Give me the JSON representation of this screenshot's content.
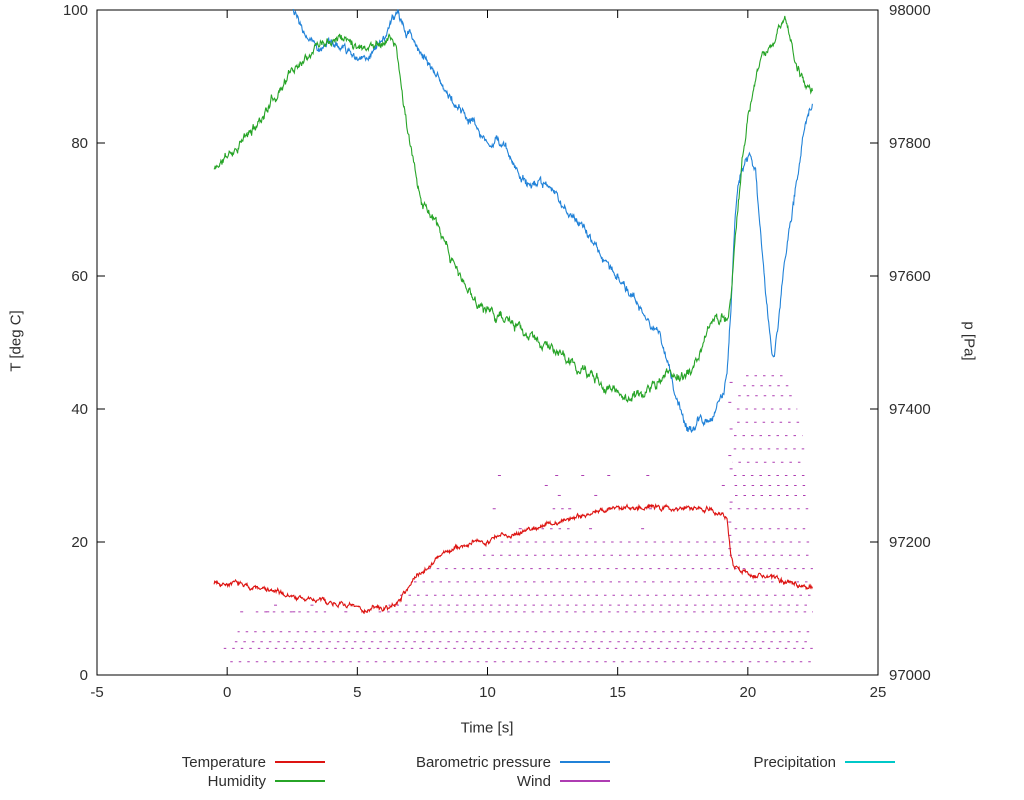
{
  "chart_data": {
    "type": "line",
    "title": "",
    "xlabel": "Time [s]",
    "ylabel_left": "T [deg C]",
    "ylabel_right": "p [Pa]",
    "xlim": [
      -5,
      25
    ],
    "ylim_left": [
      0,
      100
    ],
    "ylim_right": [
      97000,
      98000
    ],
    "x_ticks": [
      -5,
      0,
      5,
      10,
      15,
      20,
      25
    ],
    "y_left_ticks": [
      0,
      20,
      40,
      60,
      80,
      100
    ],
    "y_right_ticks": [
      97000,
      97200,
      97400,
      97600,
      97800,
      98000
    ],
    "grid": false,
    "legend_position": "bottom",
    "legend": [
      {
        "label": "Temperature",
        "color": "#dd1412"
      },
      {
        "label": "Humidity",
        "color": "#27a427"
      },
      {
        "label": "Barometric pressure",
        "color": "#2182d8"
      },
      {
        "label": "Wind",
        "color": "#ae3cb2"
      },
      {
        "label": "Precipitation",
        "color": "#00c8c8"
      }
    ],
    "series": [
      {
        "name": "Temperature",
        "axis": "left",
        "color": "#dd1412",
        "noise": 0.55,
        "seed": 7,
        "points": [
          [
            -0.5,
            14
          ],
          [
            0,
            13.8
          ],
          [
            0.5,
            13.6
          ],
          [
            1,
            13.2
          ],
          [
            1.5,
            12.8
          ],
          [
            2,
            12.3
          ],
          [
            2.5,
            11.8
          ],
          [
            3,
            11.4
          ],
          [
            3.5,
            11.2
          ],
          [
            4,
            11.0
          ],
          [
            4.5,
            10.6
          ],
          [
            5,
            10.0
          ],
          [
            5.3,
            9.8
          ],
          [
            5.6,
            10.1
          ],
          [
            6,
            10.0
          ],
          [
            6.4,
            10.3
          ],
          [
            6.6,
            11.2
          ],
          [
            7,
            13.5
          ],
          [
            7.3,
            15.0
          ],
          [
            7.6,
            16.0
          ],
          [
            8,
            17.3
          ],
          [
            8.5,
            18.6
          ],
          [
            9,
            19.3
          ],
          [
            9.5,
            19.8
          ],
          [
            10,
            20.3
          ],
          [
            10.5,
            20.8
          ],
          [
            11,
            21.3
          ],
          [
            11.5,
            21.8
          ],
          [
            12,
            22.3
          ],
          [
            12.5,
            22.8
          ],
          [
            13,
            23.3
          ],
          [
            13.5,
            24.0
          ],
          [
            14,
            24.4
          ],
          [
            14.5,
            24.8
          ],
          [
            15,
            25.0
          ],
          [
            15.5,
            25.3
          ],
          [
            16,
            25.4
          ],
          [
            16.5,
            25.2
          ],
          [
            17,
            25.0
          ],
          [
            17.5,
            25.2
          ],
          [
            18,
            25.4
          ],
          [
            18.5,
            25.0
          ],
          [
            19,
            24.2
          ],
          [
            19.2,
            23.5
          ],
          [
            19.35,
            18.0
          ],
          [
            19.5,
            16.0
          ],
          [
            19.8,
            15.5
          ],
          [
            20,
            15.3
          ],
          [
            20.5,
            15.0
          ],
          [
            21,
            14.5
          ],
          [
            21.5,
            14.0
          ],
          [
            22,
            13.6
          ],
          [
            22.5,
            13.2
          ]
        ]
      },
      {
        "name": "Humidity",
        "axis": "left",
        "color": "#27a427",
        "noise": 1.0,
        "seed": 11,
        "points": [
          [
            -0.5,
            76
          ],
          [
            0,
            78
          ],
          [
            0.5,
            80
          ],
          [
            1,
            82
          ],
          [
            1.5,
            85
          ],
          [
            2,
            88
          ],
          [
            2.5,
            91
          ],
          [
            3,
            93
          ],
          [
            3.3,
            94.5
          ],
          [
            3.6,
            95.5
          ],
          [
            4,
            96
          ],
          [
            4.3,
            96.2
          ],
          [
            4.6,
            95.5
          ],
          [
            5,
            95
          ],
          [
            5.3,
            94.6
          ],
          [
            5.6,
            94.8
          ],
          [
            6,
            95.3
          ],
          [
            6.3,
            96
          ],
          [
            6.5,
            94
          ],
          [
            6.7,
            88
          ],
          [
            7,
            80
          ],
          [
            7.3,
            74
          ],
          [
            7.5,
            71
          ],
          [
            7.8,
            69.5
          ],
          [
            8,
            68
          ],
          [
            8.3,
            65
          ],
          [
            8.6,
            62.5
          ],
          [
            9,
            59.5
          ],
          [
            9.3,
            57.5
          ],
          [
            9.6,
            56
          ],
          [
            10,
            55
          ],
          [
            10.5,
            54
          ],
          [
            11,
            52.5
          ],
          [
            11.5,
            51
          ],
          [
            12,
            50
          ],
          [
            12.5,
            49
          ],
          [
            13,
            47.5
          ],
          [
            13.5,
            46
          ],
          [
            14,
            45
          ],
          [
            14.5,
            43.5
          ],
          [
            15,
            42.5
          ],
          [
            15.3,
            42
          ],
          [
            15.6,
            41.8
          ],
          [
            16,
            42.5
          ],
          [
            16.5,
            43.8
          ],
          [
            17,
            45.5
          ],
          [
            17.3,
            45
          ],
          [
            17.6,
            44.8
          ],
          [
            18,
            46.5
          ],
          [
            18.3,
            50
          ],
          [
            18.6,
            53
          ],
          [
            19,
            54
          ],
          [
            19.2,
            53.5
          ],
          [
            19.35,
            57
          ],
          [
            19.5,
            65
          ],
          [
            19.8,
            78
          ],
          [
            20,
            84
          ],
          [
            20.3,
            89
          ],
          [
            20.5,
            92
          ],
          [
            21,
            95.5
          ],
          [
            21.2,
            97.5
          ],
          [
            21.4,
            98.5
          ],
          [
            21.6,
            96.5
          ],
          [
            21.8,
            93
          ],
          [
            22,
            90.5
          ],
          [
            22.2,
            89
          ],
          [
            22.5,
            88
          ]
        ]
      },
      {
        "name": "Barometric pressure",
        "axis": "right",
        "color": "#2182d8",
        "noise": 9,
        "seed": 23,
        "points": [
          [
            2.3,
            98012
          ],
          [
            2.5,
            98000
          ],
          [
            2.8,
            97975
          ],
          [
            3,
            97962
          ],
          [
            3.3,
            97950
          ],
          [
            3.6,
            97946
          ],
          [
            4,
            97952
          ],
          [
            4.3,
            97944
          ],
          [
            4.6,
            97936
          ],
          [
            5,
            97930
          ],
          [
            5.3,
            97932
          ],
          [
            5.6,
            97938
          ],
          [
            6,
            97958
          ],
          [
            6.3,
            97978
          ],
          [
            6.5,
            97990
          ],
          [
            6.7,
            97982
          ],
          [
            7,
            97962
          ],
          [
            7.3,
            97944
          ],
          [
            7.6,
            97930
          ],
          [
            8,
            97906
          ],
          [
            8.5,
            97872
          ],
          [
            9,
            97850
          ],
          [
            9.3,
            97832
          ],
          [
            9.6,
            97822
          ],
          [
            10,
            97802
          ],
          [
            10.3,
            97798
          ],
          [
            10.6,
            97795
          ],
          [
            11,
            97772
          ],
          [
            11.3,
            97750
          ],
          [
            11.6,
            97738
          ],
          [
            12,
            97742
          ],
          [
            12.3,
            97730
          ],
          [
            12.6,
            97722
          ],
          [
            13,
            97702
          ],
          [
            13.5,
            97682
          ],
          [
            14,
            97652
          ],
          [
            14.5,
            97626
          ],
          [
            15,
            97602
          ],
          [
            15.5,
            97572
          ],
          [
            16,
            97548
          ],
          [
            16.3,
            97530
          ],
          [
            16.6,
            97512
          ],
          [
            17,
            97455
          ],
          [
            17.3,
            97408
          ],
          [
            17.6,
            97378
          ],
          [
            17.8,
            97368
          ],
          [
            18,
            97372
          ],
          [
            18.2,
            97392
          ],
          [
            18.4,
            97382
          ],
          [
            18.6,
            97390
          ],
          [
            18.8,
            97408
          ],
          [
            19,
            97420
          ],
          [
            19.1,
            97428
          ],
          [
            19.2,
            97455
          ],
          [
            19.35,
            97550
          ],
          [
            19.5,
            97690
          ],
          [
            19.7,
            97755
          ],
          [
            19.9,
            97775
          ],
          [
            20.1,
            97780
          ],
          [
            20.3,
            97755
          ],
          [
            20.5,
            97660
          ],
          [
            20.7,
            97565
          ],
          [
            20.9,
            97495
          ],
          [
            21,
            97480
          ],
          [
            21.2,
            97540
          ],
          [
            21.4,
            97620
          ],
          [
            21.6,
            97672
          ],
          [
            21.8,
            97725
          ],
          [
            22,
            97775
          ],
          [
            22.2,
            97830
          ],
          [
            22.35,
            97855
          ],
          [
            22.5,
            97862
          ]
        ]
      },
      {
        "name": "Wind",
        "axis": "left",
        "color": "#ae3cb2",
        "seed": 31,
        "segments": [
          [
            2,
            0,
            22.5
          ],
          [
            4,
            -0.2,
            22.5
          ],
          [
            5,
            0.2,
            22.5
          ],
          [
            6.5,
            0.4,
            22.5
          ],
          [
            9.5,
            0.9,
            3.8
          ],
          [
            9.5,
            5.6,
            22.5
          ],
          [
            10.5,
            6.2,
            22.5
          ],
          [
            12,
            6.6,
            22.5
          ],
          [
            14,
            7.1,
            22.5
          ],
          [
            16,
            7.6,
            22.5
          ],
          [
            18,
            9.6,
            22.4
          ],
          [
            20,
            10.4,
            22.4
          ],
          [
            22,
            11.6,
            13.2
          ],
          [
            22,
            19.3,
            22.4
          ],
          [
            25,
            12.4,
            13.0
          ],
          [
            25,
            19.3,
            22.4
          ],
          [
            27,
            19.4,
            22.3
          ],
          [
            28.5,
            19.4,
            22.3
          ],
          [
            30,
            19.4,
            22.3
          ],
          [
            32,
            19.4,
            22.2
          ],
          [
            34,
            19.4,
            22.2
          ],
          [
            36,
            19.4,
            22.1
          ],
          [
            38,
            19.5,
            22.0
          ],
          [
            40,
            19.5,
            21.9
          ],
          [
            42,
            19.6,
            21.8
          ],
          [
            43.5,
            19.7,
            21.6
          ],
          [
            45,
            19.8,
            21.4
          ]
        ],
        "dots": [
          [
            10.4,
            30
          ],
          [
            12.6,
            30
          ],
          [
            13.6,
            30
          ],
          [
            14.6,
            30
          ],
          [
            16.1,
            30
          ],
          [
            12.2,
            28.5
          ],
          [
            14.1,
            27
          ],
          [
            12.7,
            27
          ],
          [
            10.2,
            25
          ],
          [
            13.1,
            25
          ],
          [
            16.2,
            25
          ],
          [
            17.2,
            25
          ],
          [
            11.2,
            22
          ],
          [
            13.9,
            22
          ],
          [
            15.9,
            22
          ],
          [
            19.0,
            28.5
          ],
          [
            0.5,
            9.5
          ],
          [
            1.5,
            9.5
          ],
          [
            2.5,
            9.5
          ],
          [
            4.5,
            9.5
          ],
          [
            1.8,
            10.5
          ],
          [
            3.2,
            10.5
          ],
          [
            19.25,
            19
          ],
          [
            19.25,
            21
          ],
          [
            19.25,
            23
          ],
          [
            19.3,
            26
          ],
          [
            19.3,
            31
          ],
          [
            19.25,
            33
          ],
          [
            19.3,
            37
          ],
          [
            19.25,
            41
          ],
          [
            19.3,
            44
          ]
        ]
      },
      {
        "name": "Precipitation",
        "axis": "left",
        "color": "#00c8c8",
        "noise": 0,
        "seed": 5,
        "points": []
      }
    ]
  }
}
